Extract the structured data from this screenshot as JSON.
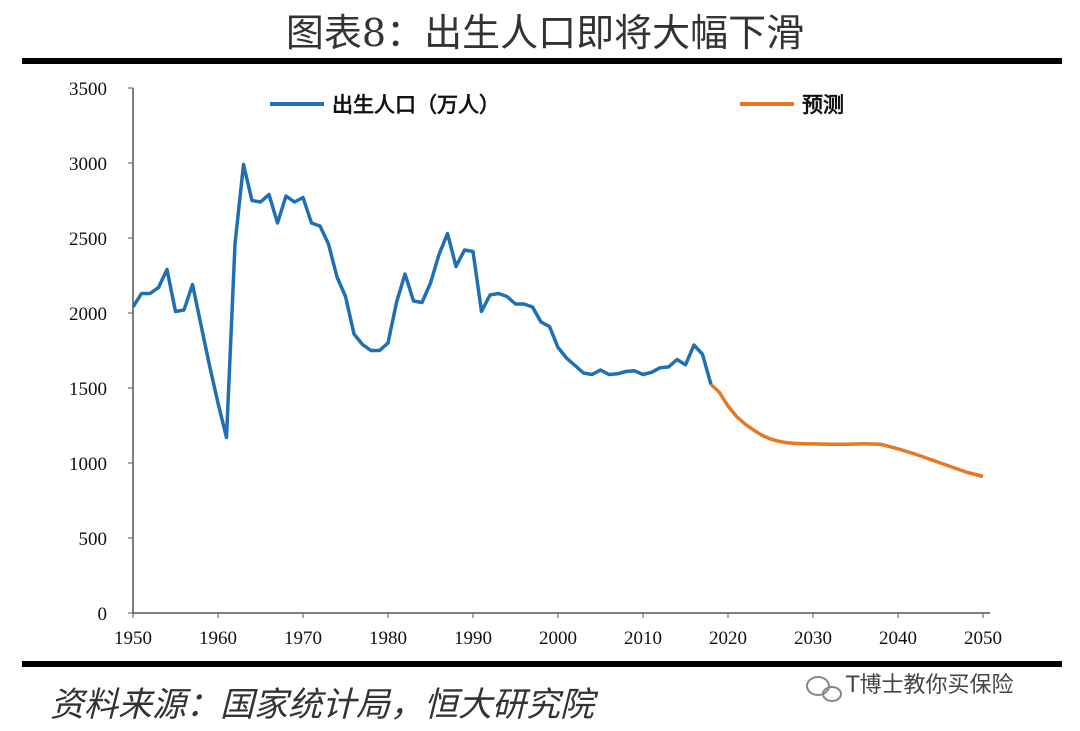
{
  "title": "图表8：出生人口即将大幅下滑",
  "source": "资料来源：国家统计局，恒大研究院",
  "watermark": "T博士教你买保险",
  "chart_data": {
    "type": "line",
    "xlim": [
      1950,
      2050
    ],
    "xticks": [
      1950,
      1960,
      1970,
      1980,
      1990,
      2000,
      2010,
      2020,
      2030,
      2040,
      2050
    ],
    "ylim": [
      0,
      3500
    ],
    "yticks": [
      0,
      500,
      1000,
      1500,
      2000,
      2500,
      3000,
      3500
    ],
    "series": [
      {
        "name": "出生人口（万人）",
        "color": "#1f6fb5",
        "x": [
          1950,
          1951,
          1952,
          1953,
          1954,
          1955,
          1956,
          1957,
          1958,
          1959,
          1960,
          1961,
          1962,
          1963,
          1964,
          1965,
          1966,
          1967,
          1968,
          1969,
          1970,
          1971,
          1972,
          1973,
          1974,
          1975,
          1976,
          1977,
          1978,
          1979,
          1980,
          1981,
          1982,
          1983,
          1984,
          1985,
          1986,
          1987,
          1988,
          1989,
          1990,
          1991,
          1992,
          1993,
          1994,
          1995,
          1996,
          1997,
          1998,
          1999,
          2000,
          2001,
          2002,
          2003,
          2004,
          2005,
          2006,
          2007,
          2008,
          2009,
          2010,
          2011,
          2012,
          2013,
          2014,
          2015,
          2016,
          2017,
          2018
        ],
        "values": [
          2040,
          2130,
          2130,
          2170,
          2290,
          2010,
          2020,
          2190,
          1920,
          1650,
          1400,
          1170,
          2460,
          2990,
          2750,
          2740,
          2790,
          2600,
          2780,
          2740,
          2770,
          2600,
          2580,
          2460,
          2240,
          2110,
          1860,
          1790,
          1750,
          1750,
          1800,
          2070,
          2260,
          2080,
          2070,
          2200,
          2390,
          2530,
          2310,
          2420,
          2410,
          2010,
          2120,
          2130,
          2110,
          2060,
          2060,
          2040,
          1940,
          1910,
          1770,
          1700,
          1650,
          1600,
          1590,
          1620,
          1590,
          1595,
          1610,
          1615,
          1590,
          1605,
          1635,
          1640,
          1690,
          1655,
          1786,
          1725,
          1523
        ]
      },
      {
        "name": "预测",
        "color": "#e87722",
        "x": [
          2018,
          2019,
          2020,
          2021,
          2022,
          2023,
          2024,
          2025,
          2026,
          2027,
          2028,
          2029,
          2030,
          2032,
          2034,
          2036,
          2038,
          2040,
          2042,
          2044,
          2046,
          2048,
          2050
        ],
        "values": [
          1523,
          1470,
          1380,
          1310,
          1260,
          1220,
          1185,
          1160,
          1145,
          1135,
          1130,
          1128,
          1127,
          1125,
          1125,
          1128,
          1125,
          1095,
          1060,
          1020,
          980,
          940,
          910
        ]
      }
    ]
  }
}
